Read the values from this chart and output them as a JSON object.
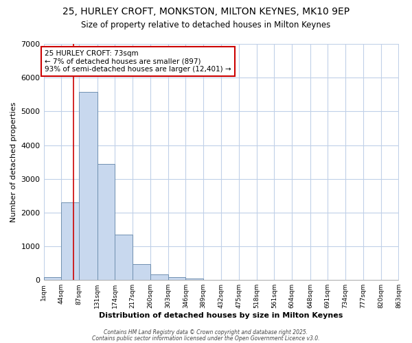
{
  "title_line1": "25, HURLEY CROFT, MONKSTON, MILTON KEYNES, MK10 9EP",
  "title_line2": "Size of property relative to detached houses in Milton Keynes",
  "xlabel": "Distribution of detached houses by size in Milton Keynes",
  "ylabel": "Number of detached properties",
  "bin_edges": [
    1,
    44,
    87,
    131,
    174,
    217,
    260,
    303,
    346,
    389,
    432,
    475,
    518,
    561,
    604,
    648,
    691,
    734,
    777,
    820,
    863
  ],
  "bar_heights": [
    80,
    2300,
    5580,
    3450,
    1350,
    480,
    175,
    80,
    50,
    0,
    0,
    0,
    0,
    0,
    0,
    0,
    0,
    0,
    0,
    0
  ],
  "bar_color": "#c8d8ee",
  "bar_edge_color": "#7090b0",
  "vline_x": 73,
  "vline_color": "#cc0000",
  "annotation_text": "25 HURLEY CROFT: 73sqm\n← 7% of detached houses are smaller (897)\n93% of semi-detached houses are larger (12,401) →",
  "annotation_box_color": "white",
  "annotation_box_edge_color": "#cc0000",
  "ylim": [
    0,
    7000
  ],
  "yticks": [
    0,
    1000,
    2000,
    3000,
    4000,
    5000,
    6000,
    7000
  ],
  "background_color": "#ffffff",
  "plot_bg_color": "#ffffff",
  "grid_color": "#c0d0e8",
  "footer_line1": "Contains HM Land Registry data © Crown copyright and database right 2025.",
  "footer_line2": "Contains public sector information licensed under the Open Government Licence v3.0.",
  "tick_labels": [
    "1sqm",
    "44sqm",
    "87sqm",
    "131sqm",
    "174sqm",
    "217sqm",
    "260sqm",
    "303sqm",
    "346sqm",
    "389sqm",
    "432sqm",
    "475sqm",
    "518sqm",
    "561sqm",
    "604sqm",
    "648sqm",
    "691sqm",
    "734sqm",
    "777sqm",
    "820sqm",
    "863sqm"
  ]
}
